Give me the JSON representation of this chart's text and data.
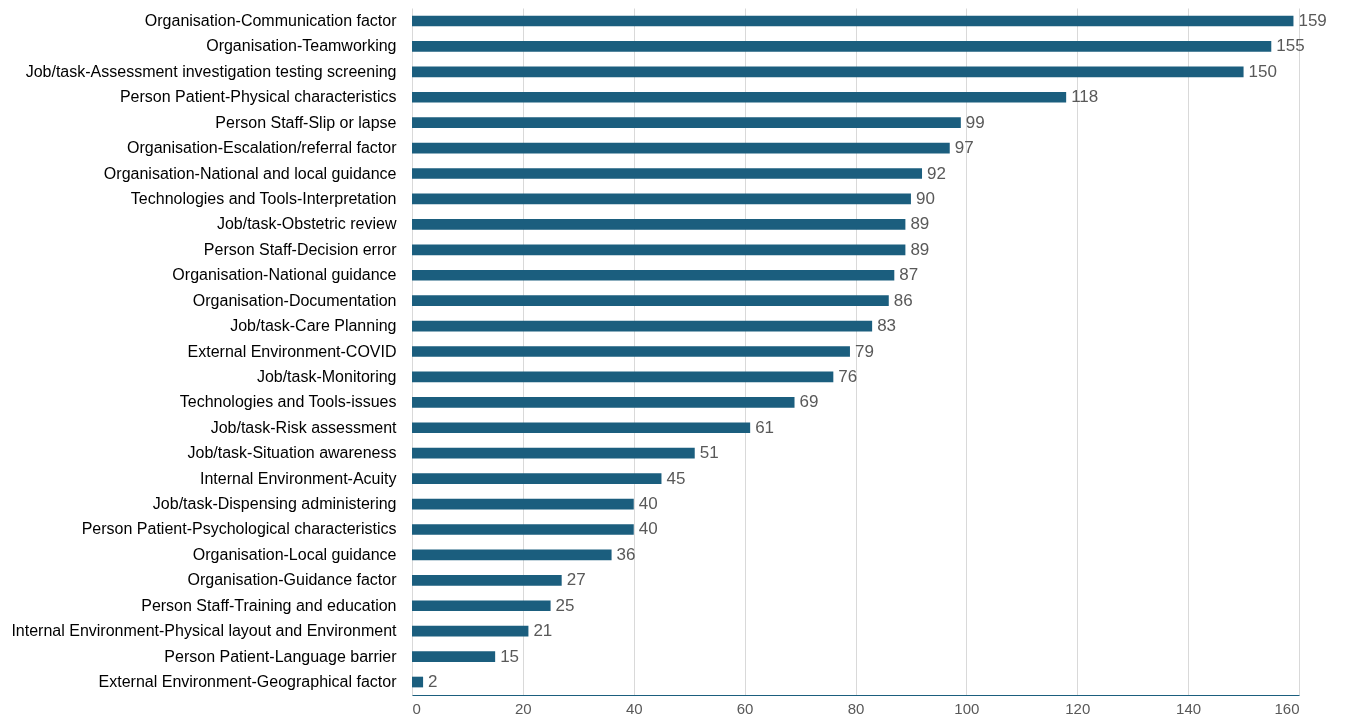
{
  "chart_data": {
    "type": "bar",
    "orientation": "horizontal",
    "categories": [
      "Organisation-Communication factor",
      "Organisation-Teamworking",
      "Job/task-Assessment investigation testing screening",
      "Person Patient-Physical characteristics",
      "Person Staff-Slip or lapse",
      "Organisation-Escalation/referral factor",
      "Organisation-National and local guidance",
      "Technologies and Tools-Interpretation",
      "Job/task-Obstetric review",
      "Person Staff-Decision error",
      "Organisation-National guidance",
      "Organisation-Documentation",
      "Job/task-Care Planning",
      "External Environment-COVID",
      "Job/task-Monitoring",
      "Technologies and Tools-issues",
      "Job/task-Risk assessment",
      "Job/task-Situation awareness",
      "Internal Environment-Acuity",
      "Job/task-Dispensing administering",
      "Person Patient-Psychological characteristics",
      "Organisation-Local guidance",
      "Organisation-Guidance factor",
      "Person Staff-Training and education",
      "Internal Environment-Physical layout and Environment",
      "Person Patient-Language barrier",
      "External Environment-Geographical factor"
    ],
    "values": [
      159,
      155,
      150,
      118,
      99,
      97,
      92,
      90,
      89,
      89,
      87,
      86,
      83,
      79,
      76,
      69,
      61,
      51,
      45,
      40,
      40,
      36,
      27,
      25,
      21,
      15,
      2
    ],
    "color": "#1b5e7e",
    "xlim": [
      0,
      160
    ],
    "xticks": [
      0,
      20,
      40,
      60,
      80,
      100,
      120,
      140,
      160
    ],
    "grid": "x",
    "data_labels": true
  }
}
